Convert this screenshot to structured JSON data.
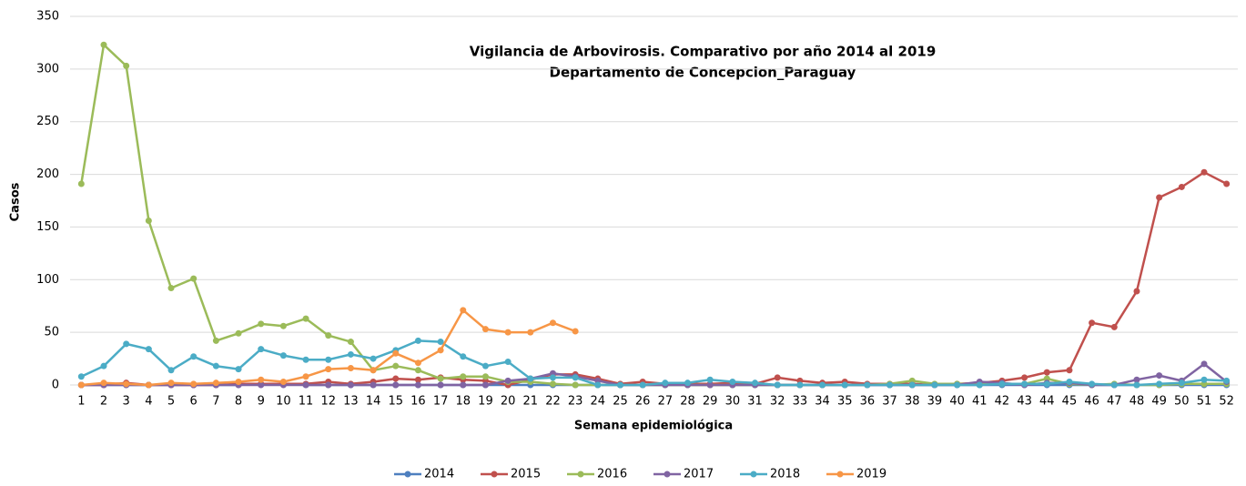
{
  "chart_data": {
    "type": "line",
    "title": "Vigilancia de Arbovirosis. Comparativo por año 2014 al 2019",
    "subtitle": "Departamento de Concepcion_Paraguay",
    "x_label": "Semana epidemiológica",
    "y_label": "Casos",
    "categories": [
      "1",
      "2",
      "3",
      "4",
      "5",
      "6",
      "7",
      "8",
      "9",
      "10",
      "11",
      "12",
      "13",
      "14",
      "15",
      "16",
      "17",
      "18",
      "19",
      "20",
      "21",
      "22",
      "23",
      "24",
      "25",
      "26",
      "27",
      "28",
      "29",
      "30",
      "31",
      "32",
      "33",
      "34",
      "35",
      "36",
      "37",
      "38",
      "39",
      "40",
      "41",
      "42",
      "43",
      "44",
      "45",
      "46",
      "47",
      "48",
      "49",
      "50",
      "51",
      "52"
    ],
    "ylim": [
      0,
      350
    ],
    "yticks": [
      0,
      50,
      100,
      150,
      200,
      250,
      300,
      350
    ],
    "grid": true,
    "legend": "bottom",
    "series": [
      {
        "name": "2014",
        "color": "#4e7fbf",
        "values": [
          0,
          0,
          0,
          0,
          0,
          0,
          0,
          0,
          1,
          1,
          0,
          0,
          0,
          0,
          0,
          0,
          0,
          0,
          0,
          0,
          0,
          0,
          0,
          0,
          0,
          0,
          0,
          0,
          0,
          0,
          0,
          0,
          0,
          0,
          0,
          0,
          0,
          0,
          0,
          0,
          0,
          0,
          0,
          0,
          0,
          0,
          0,
          0,
          0,
          0,
          0,
          0
        ]
      },
      {
        "name": "2015",
        "color": "#c0504d",
        "values": [
          0,
          0,
          2,
          0,
          0,
          0,
          0,
          1,
          1,
          1,
          1,
          3,
          1,
          3,
          6,
          5,
          7,
          5,
          4,
          0,
          5,
          10,
          10,
          6,
          1,
          3,
          1,
          1,
          1,
          2,
          1,
          7,
          4,
          2,
          3,
          1,
          1,
          1,
          0,
          1,
          2,
          4,
          7,
          12,
          14,
          59,
          55,
          89,
          178,
          188,
          202,
          191
        ]
      },
      {
        "name": "2016",
        "color": "#9bbb59",
        "values": [
          191,
          323,
          303,
          156,
          92,
          101,
          42,
          49,
          58,
          56,
          63,
          47,
          41,
          14,
          18,
          14,
          6,
          8,
          8,
          3,
          3,
          1,
          0,
          0,
          0,
          0,
          0,
          0,
          0,
          0,
          0,
          0,
          0,
          0,
          0,
          0,
          1,
          4,
          1,
          1,
          1,
          1,
          1,
          6,
          1,
          0,
          1,
          0,
          0,
          1,
          1,
          1
        ]
      },
      {
        "name": "2017",
        "color": "#8064a2",
        "values": [
          0,
          0,
          0,
          0,
          0,
          0,
          0,
          0,
          0,
          0,
          0,
          0,
          0,
          0,
          0,
          0,
          0,
          0,
          0,
          4,
          6,
          11,
          8,
          4,
          0,
          0,
          0,
          0,
          0,
          0,
          0,
          0,
          0,
          0,
          0,
          0,
          0,
          0,
          0,
          0,
          3,
          2,
          0,
          2,
          2,
          0,
          0,
          5,
          9,
          4,
          20,
          3
        ]
      },
      {
        "name": "2018",
        "color": "#4bacc6",
        "values": [
          8,
          18,
          39,
          34,
          14,
          27,
          18,
          15,
          34,
          28,
          24,
          24,
          29,
          25,
          33,
          42,
          41,
          27,
          18,
          22,
          6,
          7,
          7,
          0,
          0,
          0,
          2,
          2,
          5,
          3,
          2,
          0,
          0,
          0,
          0,
          0,
          0,
          0,
          0,
          0,
          0,
          1,
          1,
          1,
          3,
          1,
          0,
          0,
          1,
          2,
          5,
          4
        ]
      },
      {
        "name": "2019",
        "color": "#f79646",
        "values": [
          0,
          2,
          1,
          0,
          2,
          1,
          2,
          3,
          5,
          3,
          8,
          15,
          16,
          14,
          30,
          21,
          33,
          71,
          53,
          50,
          50,
          59,
          51,
          null,
          null,
          null,
          null,
          null,
          null,
          null,
          null,
          null,
          null,
          null,
          null,
          null,
          null,
          null,
          null,
          null,
          null,
          null,
          null,
          null,
          null,
          null,
          null,
          null,
          null,
          null,
          null,
          null
        ]
      }
    ]
  }
}
